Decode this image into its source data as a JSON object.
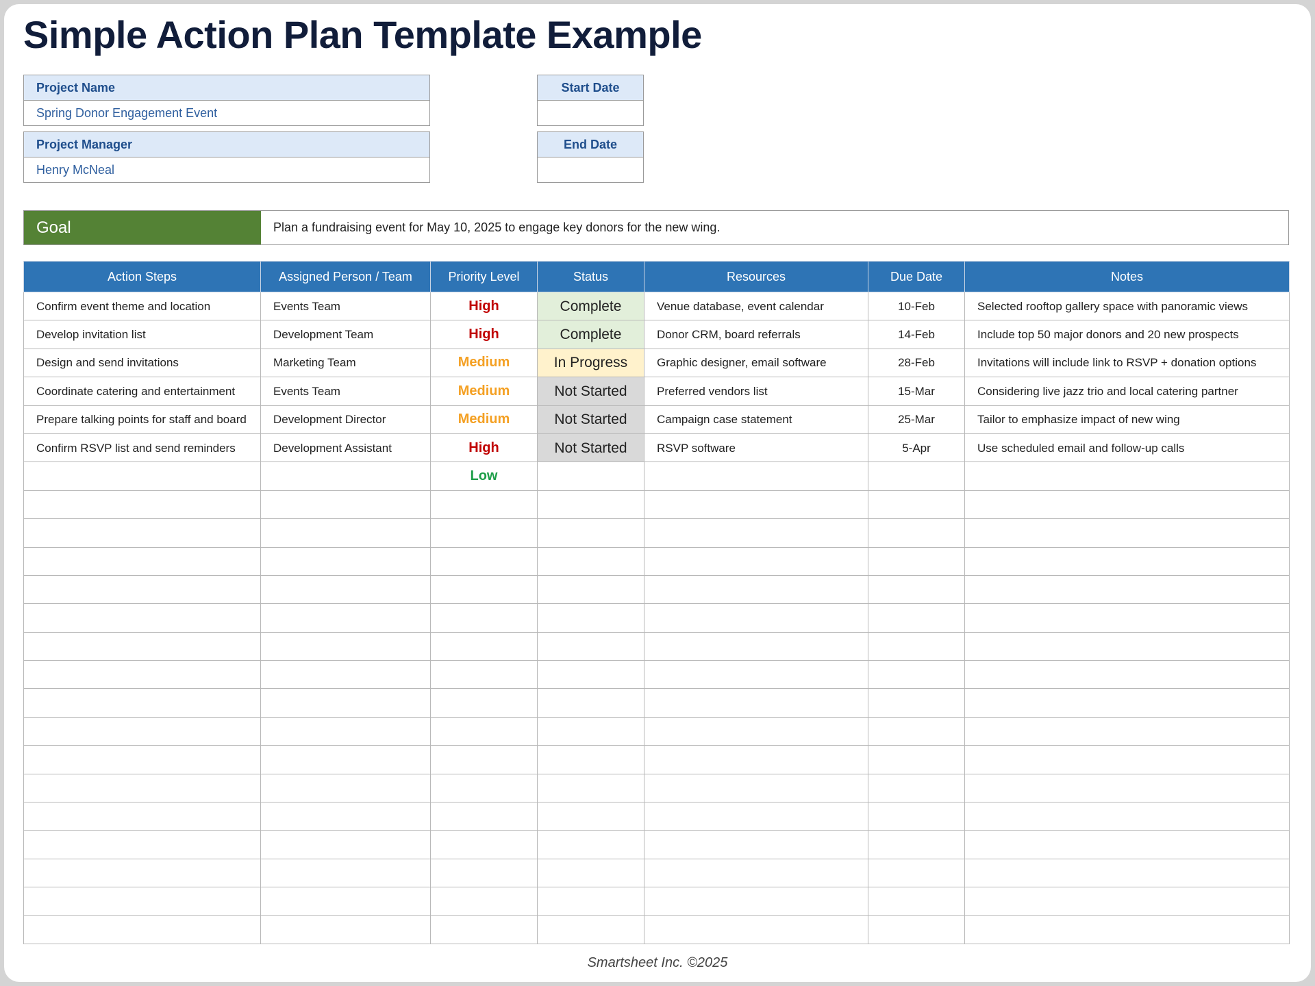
{
  "title": "Simple Action Plan Template Example",
  "project": {
    "name_label": "Project Name",
    "name_value": "Spring Donor Engagement Event",
    "manager_label": "Project Manager",
    "manager_value": "Henry McNeal",
    "start_label": "Start Date",
    "start_value": "",
    "end_label": "End Date",
    "end_value": ""
  },
  "goal": {
    "label": "Goal",
    "text": "Plan a fundraising event for May 10, 2025 to engage key donors for the new wing."
  },
  "table": {
    "headers": [
      "Action Steps",
      "Assigned Person / Team",
      "Priority Level",
      "Status",
      "Resources",
      "Due Date",
      "Notes"
    ],
    "rows": [
      {
        "step": "Confirm event theme and location",
        "who": "Events Team",
        "priority": "High",
        "status": "Complete",
        "resources": "Venue database, event calendar",
        "due": "10-Feb",
        "notes": "Selected rooftop gallery space with panoramic views"
      },
      {
        "step": "Develop invitation list",
        "who": "Development Team",
        "priority": "High",
        "status": "Complete",
        "resources": "Donor CRM, board referrals",
        "due": "14-Feb",
        "notes": "Include top 50 major donors and 20 new prospects"
      },
      {
        "step": "Design and send invitations",
        "who": "Marketing Team",
        "priority": "Medium",
        "status": "In Progress",
        "resources": "Graphic designer, email software",
        "due": "28-Feb",
        "notes": "Invitations will include link to RSVP + donation options"
      },
      {
        "step": "Coordinate catering and entertainment",
        "who": "Events Team",
        "priority": "Medium",
        "status": "Not Started",
        "resources": "Preferred vendors list",
        "due": "15-Mar",
        "notes": "Considering live jazz trio and local catering partner"
      },
      {
        "step": "Prepare talking points for staff and board",
        "who": "Development Director",
        "priority": "Medium",
        "status": "Not Started",
        "resources": "Campaign case statement",
        "due": "25-Mar",
        "notes": "Tailor to emphasize impact of new wing"
      },
      {
        "step": "Confirm RSVP list and send reminders",
        "who": "Development Assistant",
        "priority": "High",
        "status": "Not Started",
        "resources": "RSVP software",
        "due": "5-Apr",
        "notes": "Use scheduled email and follow-up calls"
      },
      {
        "step": "",
        "who": "",
        "priority": "Low",
        "status": "",
        "resources": "",
        "due": "",
        "notes": ""
      }
    ]
  },
  "colors": {
    "header_blue": "#2e74b5",
    "goal_green": "#548235",
    "High": "#c00000",
    "Medium": "#f4a023",
    "Low": "#1e9e48",
    "Complete": "#e2efda",
    "In Progress": "#fff2cc",
    "Not Started": "#d9d9d9"
  },
  "footer": "Smartsheet Inc. ©2025"
}
